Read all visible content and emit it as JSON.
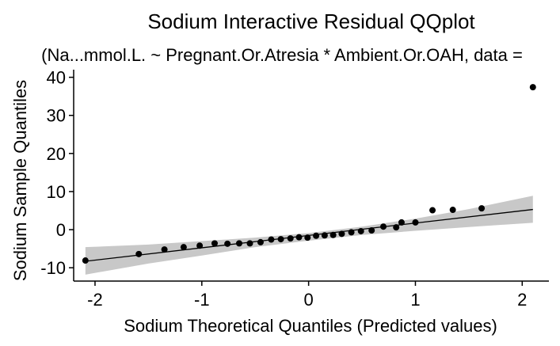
{
  "chart_data": {
    "type": "scatter",
    "title": "Sodium Interactive Residual QQplot",
    "subtitle": "(Na...mmol.L. ~ Pregnant.Or.Atresia * Ambient.Or.OAH, data =",
    "xlabel": "Sodium Theoretical Quantiles (Predicted values)",
    "ylabel": "Sodium Sample Quantiles",
    "xlim": [
      -2.2,
      2.25
    ],
    "ylim": [
      -13.5,
      42
    ],
    "x_ticks": [
      -2,
      -1,
      0,
      1,
      2
    ],
    "x_tick_labels": [
      "-2",
      "-1",
      "0",
      "1",
      "2"
    ],
    "y_ticks": [
      -10,
      0,
      10,
      20,
      30,
      40
    ],
    "y_tick_labels": [
      "-10",
      "0",
      "10",
      "20",
      "30",
      "40"
    ],
    "grid": false,
    "points": [
      {
        "x": -2.09,
        "y": -8.1
      },
      {
        "x": -1.59,
        "y": -6.4
      },
      {
        "x": -1.35,
        "y": -5.2
      },
      {
        "x": -1.17,
        "y": -4.6
      },
      {
        "x": -1.02,
        "y": -4.2
      },
      {
        "x": -0.88,
        "y": -3.6
      },
      {
        "x": -0.76,
        "y": -3.7
      },
      {
        "x": -0.65,
        "y": -3.6
      },
      {
        "x": -0.55,
        "y": -3.6
      },
      {
        "x": -0.45,
        "y": -3.3
      },
      {
        "x": -0.35,
        "y": -2.6
      },
      {
        "x": -0.26,
        "y": -2.5
      },
      {
        "x": -0.17,
        "y": -2.3
      },
      {
        "x": -0.09,
        "y": -2.0
      },
      {
        "x": -0.01,
        "y": -2.1
      },
      {
        "x": 0.07,
        "y": -1.6
      },
      {
        "x": 0.15,
        "y": -1.5
      },
      {
        "x": 0.23,
        "y": -1.4
      },
      {
        "x": 0.31,
        "y": -1.1
      },
      {
        "x": 0.4,
        "y": -0.7
      },
      {
        "x": 0.49,
        "y": -0.4
      },
      {
        "x": 0.59,
        "y": -0.2
      },
      {
        "x": 0.7,
        "y": 0.8
      },
      {
        "x": 0.82,
        "y": 0.6
      },
      {
        "x": 0.87,
        "y": 1.9
      },
      {
        "x": 1.0,
        "y": 1.9
      },
      {
        "x": 1.16,
        "y": 5.1
      },
      {
        "x": 1.35,
        "y": 5.2
      },
      {
        "x": 1.62,
        "y": 5.6
      },
      {
        "x": 2.1,
        "y": 37.4
      }
    ],
    "reference_line": {
      "x": [
        -2.09,
        2.1
      ],
      "y": [
        -8.3,
        5.3
      ]
    },
    "confidence_band": {
      "x": [
        -2.09,
        -1.5,
        -1.0,
        -0.5,
        0.0,
        0.5,
        1.0,
        1.5,
        2.1
      ],
      "lower": [
        -11.8,
        -8.9,
        -6.8,
        -4.6,
        -2.9,
        -1.4,
        -0.3,
        0.7,
        1.8
      ],
      "upper": [
        -4.6,
        -3.9,
        -3.0,
        -2.1,
        -0.9,
        0.8,
        2.9,
        5.4,
        8.9
      ]
    },
    "colors": {
      "points": "#000000",
      "line": "#000000",
      "band": "#c8c8c8",
      "axis": "#000000"
    }
  }
}
